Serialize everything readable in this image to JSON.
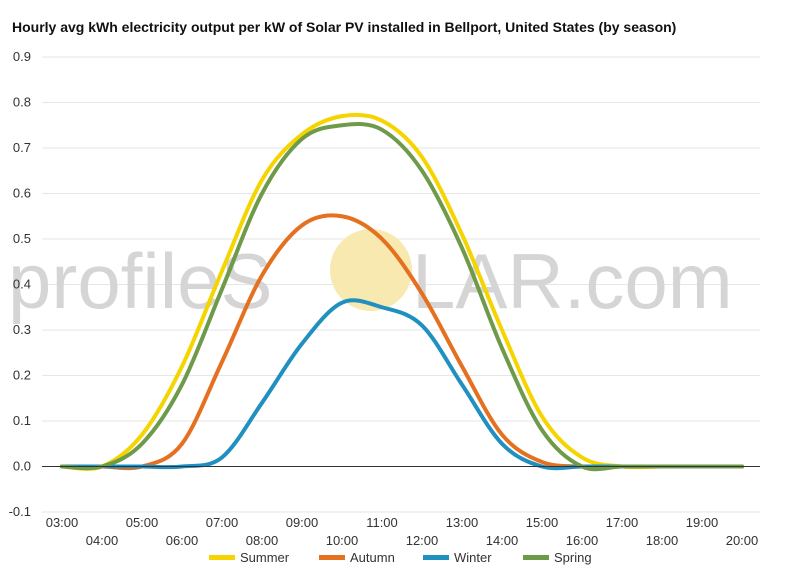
{
  "watermark": {
    "text_left": "profileS",
    "text_right": "LAR.com",
    "sun_color": "#f7e9b0"
  },
  "chart_data": {
    "type": "line",
    "title": "Hourly avg kWh electricity output per kW of Solar PV installed in Bellport, United States (by season)",
    "xlabel": "",
    "ylabel": "",
    "x": [
      "03:00",
      "04:00",
      "05:00",
      "06:00",
      "07:00",
      "08:00",
      "09:00",
      "10:00",
      "11:00",
      "12:00",
      "13:00",
      "14:00",
      "15:00",
      "16:00",
      "17:00",
      "18:00",
      "19:00",
      "20:00"
    ],
    "ylim": [
      -0.1,
      0.9
    ],
    "yticks": [
      "-0.1",
      "0.0",
      "0.1",
      "0.2",
      "0.3",
      "0.4",
      "0.5",
      "0.6",
      "0.7",
      "0.8",
      "0.9"
    ],
    "grid": true,
    "legend_position": "bottom",
    "series": [
      {
        "name": "Summer",
        "color": "#f5d400",
        "values": [
          0.0,
          0.0,
          0.07,
          0.22,
          0.43,
          0.63,
          0.73,
          0.77,
          0.76,
          0.68,
          0.51,
          0.3,
          0.11,
          0.02,
          0.0,
          0.0,
          0.0,
          0.0
        ]
      },
      {
        "name": "Autumn",
        "color": "#e57020",
        "values": [
          0.0,
          0.0,
          0.0,
          0.05,
          0.23,
          0.42,
          0.53,
          0.55,
          0.5,
          0.38,
          0.22,
          0.07,
          0.01,
          0.0,
          0.0,
          0.0,
          0.0,
          0.0
        ]
      },
      {
        "name": "Winter",
        "color": "#2090c0",
        "values": [
          0.0,
          0.0,
          0.0,
          0.0,
          0.02,
          0.14,
          0.27,
          0.36,
          0.35,
          0.31,
          0.18,
          0.05,
          0.0,
          0.0,
          0.0,
          0.0,
          0.0,
          0.0
        ]
      },
      {
        "name": "Spring",
        "color": "#6e9a4a",
        "values": [
          0.0,
          0.0,
          0.05,
          0.18,
          0.39,
          0.6,
          0.72,
          0.75,
          0.74,
          0.65,
          0.48,
          0.26,
          0.08,
          0.0,
          0.0,
          0.0,
          0.0,
          0.0
        ]
      }
    ]
  }
}
